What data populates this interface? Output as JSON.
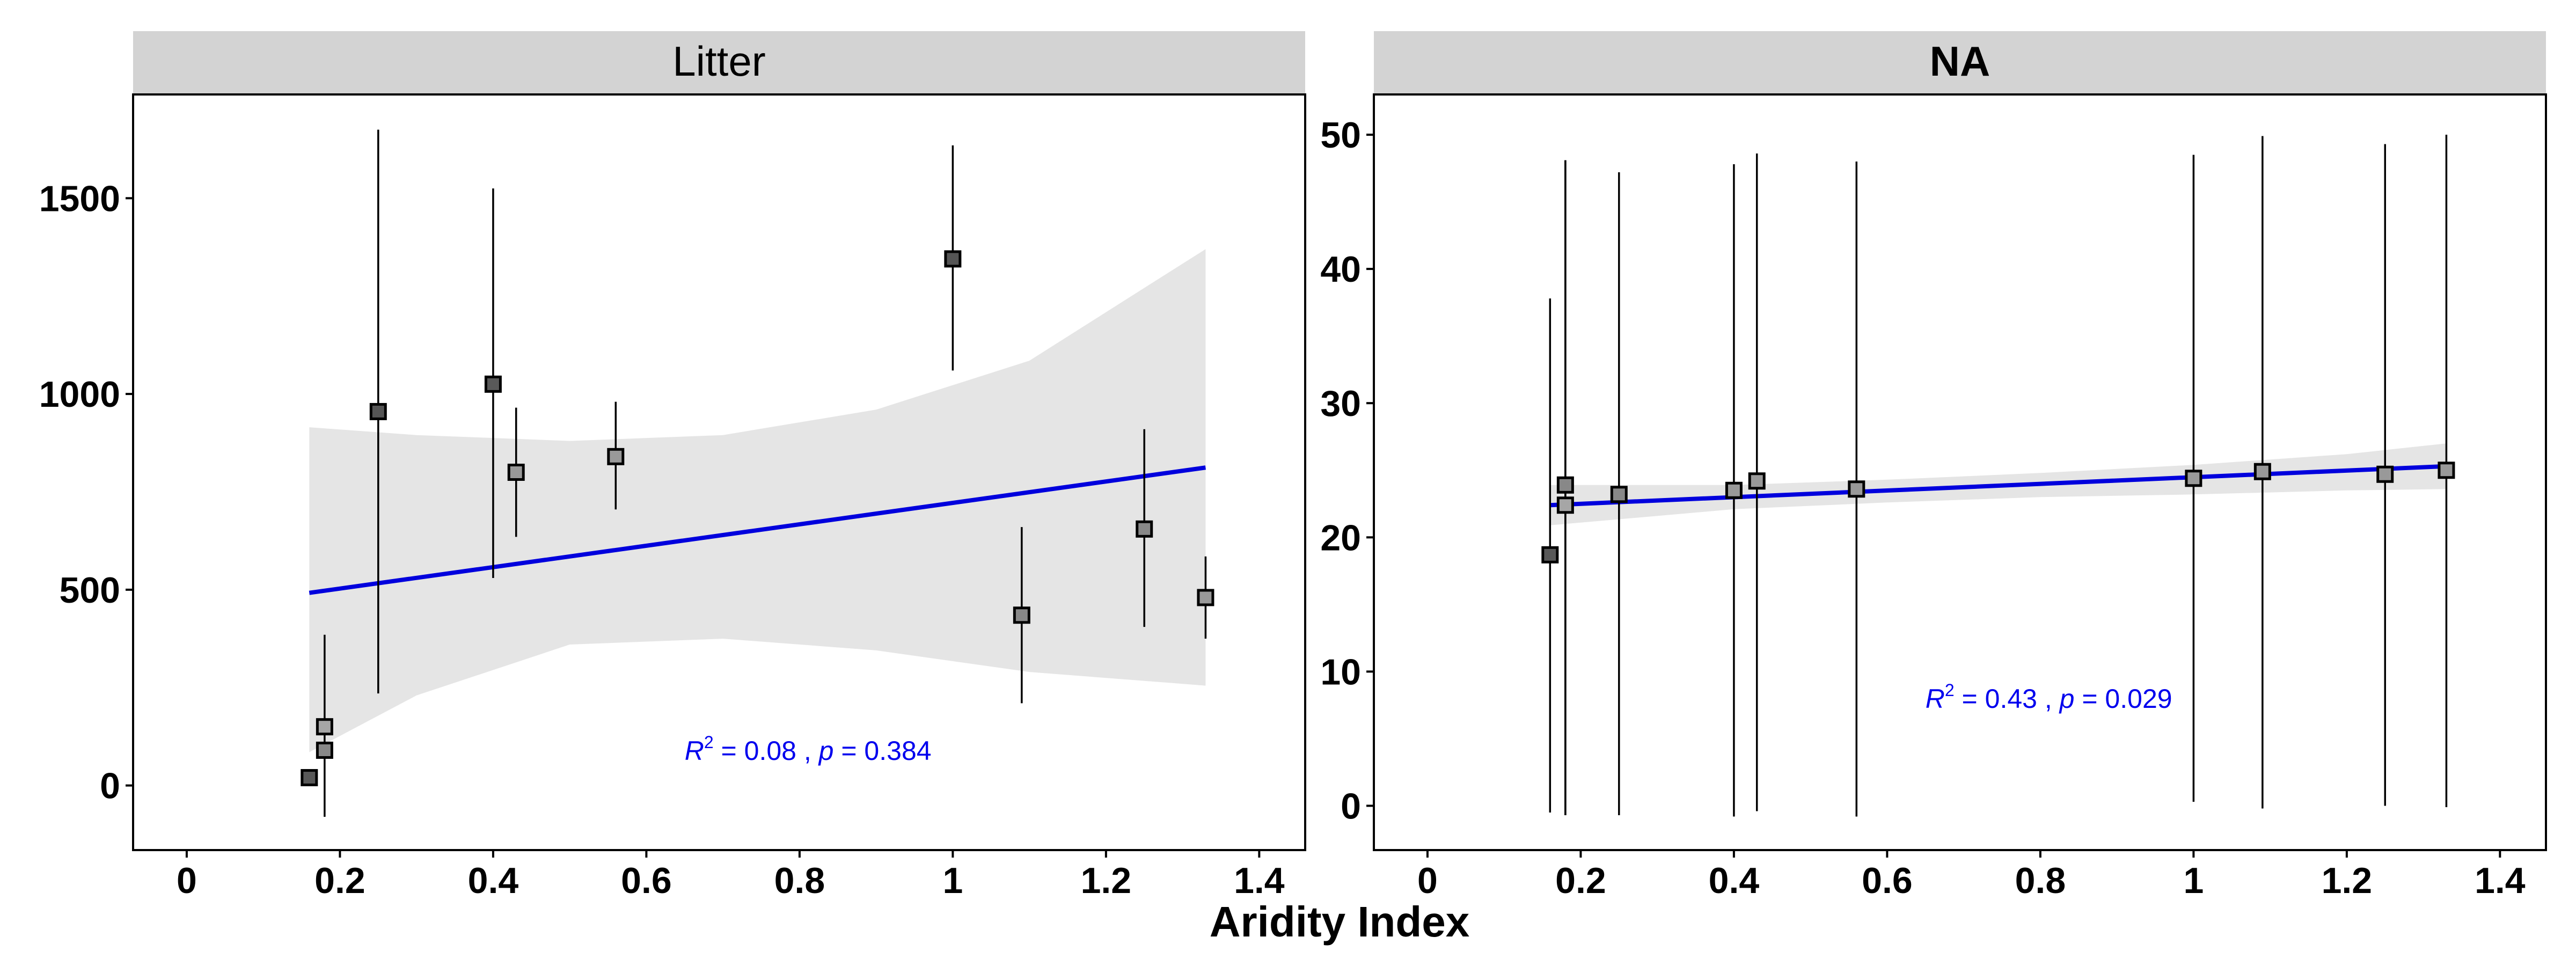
{
  "chart_data": [
    {
      "type": "scatter",
      "title": "Litter",
      "xlabel": "Aridity Index",
      "ylabel": "",
      "xlim": [
        -0.07,
        1.46
      ],
      "ylim": [
        -165,
        1765
      ],
      "x_ticks": [
        0,
        0.2,
        0.4,
        0.6,
        0.8,
        1,
        1.2,
        1.4
      ],
      "y_ticks": [
        0,
        500,
        1000,
        1500
      ],
      "x_tick_labels": [
        "0",
        "0.2",
        "0.4",
        "0.6",
        "0.8",
        "1",
        "1.2",
        "1.4"
      ],
      "y_tick_labels": [
        "0",
        "500",
        "1000",
        "1500"
      ],
      "grid": false,
      "points": [
        {
          "x": 0.16,
          "y": 20,
          "ymin": 20,
          "ymax": 20,
          "fill": "#595959"
        },
        {
          "x": 0.18,
          "y": 150,
          "ymin": -80,
          "ymax": 385,
          "fill": "#a6a6a6"
        },
        {
          "x": 0.18,
          "y": 90,
          "ymin": 90,
          "ymax": 90,
          "fill": "#888888"
        },
        {
          "x": 0.25,
          "y": 955,
          "ymin": 235,
          "ymax": 1675,
          "fill": "#555555"
        },
        {
          "x": 0.4,
          "y": 1025,
          "ymin": 530,
          "ymax": 1525,
          "fill": "#595959"
        },
        {
          "x": 0.43,
          "y": 800,
          "ymin": 635,
          "ymax": 965,
          "fill": "#999999"
        },
        {
          "x": 0.56,
          "y": 840,
          "ymin": 705,
          "ymax": 980,
          "fill": "#999999"
        },
        {
          "x": 1.0,
          "y": 1345,
          "ymin": 1060,
          "ymax": 1635,
          "fill": "#555555"
        },
        {
          "x": 1.09,
          "y": 435,
          "ymin": 210,
          "ymax": 660,
          "fill": "#888888"
        },
        {
          "x": 1.25,
          "y": 655,
          "ymin": 405,
          "ymax": 910,
          "fill": "#888888"
        },
        {
          "x": 1.33,
          "y": 480,
          "ymin": 375,
          "ymax": 585,
          "fill": "#999999"
        }
      ],
      "fit": {
        "x0": 0.16,
        "y0": 492,
        "x1": 1.33,
        "y1": 812,
        "color": "#0000dd"
      },
      "ribbon": {
        "upper": [
          [
            0.16,
            915
          ],
          [
            0.3,
            895
          ],
          [
            0.5,
            880
          ],
          [
            0.7,
            895
          ],
          [
            0.9,
            960
          ],
          [
            1.1,
            1085
          ],
          [
            1.33,
            1370
          ]
        ],
        "lower": [
          [
            0.16,
            85
          ],
          [
            0.3,
            230
          ],
          [
            0.5,
            360
          ],
          [
            0.7,
            375
          ],
          [
            0.9,
            345
          ],
          [
            1.1,
            290
          ],
          [
            1.33,
            255
          ]
        ]
      },
      "annotation": {
        "r_label": "R",
        "r_exp": "2",
        "r_value": " = 0.08 , ",
        "p_label": "p",
        "p_value": " = 0.384",
        "x": 0.65,
        "y": 65
      }
    },
    {
      "type": "scatter",
      "title": "NA",
      "xlabel": "Aridity Index",
      "ylabel": "",
      "xlim": [
        -0.07,
        1.46
      ],
      "ylim": [
        -3.3,
        53
      ],
      "x_ticks": [
        0,
        0.2,
        0.4,
        0.6,
        0.8,
        1,
        1.2,
        1.4
      ],
      "y_ticks": [
        0,
        10,
        20,
        30,
        40,
        50
      ],
      "x_tick_labels": [
        "0",
        "0.2",
        "0.4",
        "0.6",
        "0.8",
        "1",
        "1.2",
        "1.4"
      ],
      "y_tick_labels": [
        "0",
        "10",
        "20",
        "30",
        "40",
        "50"
      ],
      "grid": false,
      "points": [
        {
          "x": 0.16,
          "y": 18.7,
          "ymin": -0.5,
          "ymax": 37.8,
          "fill": "#595959"
        },
        {
          "x": 0.18,
          "y": 22.4,
          "ymin": -0.7,
          "ymax": 48.1,
          "fill": "#a6a6a6"
        },
        {
          "x": 0.18,
          "y": 23.9,
          "ymin": -0.7,
          "ymax": 48.1,
          "fill": "#888888"
        },
        {
          "x": 0.25,
          "y": 23.2,
          "ymin": -0.7,
          "ymax": 47.2,
          "fill": "#888888"
        },
        {
          "x": 0.4,
          "y": 23.5,
          "ymin": -0.8,
          "ymax": 47.8,
          "fill": "#999999"
        },
        {
          "x": 0.43,
          "y": 24.2,
          "ymin": -0.4,
          "ymax": 48.6,
          "fill": "#999999"
        },
        {
          "x": 0.56,
          "y": 23.6,
          "ymin": -0.8,
          "ymax": 48.0,
          "fill": "#999999"
        },
        {
          "x": 1.0,
          "y": 24.4,
          "ymin": 0.3,
          "ymax": 48.5,
          "fill": "#999999"
        },
        {
          "x": 1.09,
          "y": 24.9,
          "ymin": -0.2,
          "ymax": 49.9,
          "fill": "#999999"
        },
        {
          "x": 1.25,
          "y": 24.7,
          "ymin": 0.0,
          "ymax": 49.3,
          "fill": "#999999"
        },
        {
          "x": 1.33,
          "y": 25.0,
          "ymin": -0.1,
          "ymax": 50.0,
          "fill": "#999999"
        }
      ],
      "fit": {
        "x0": 0.16,
        "y0": 22.4,
        "x1": 1.33,
        "y1": 25.3,
        "color": "#0000dd"
      },
      "ribbon": {
        "upper": [
          [
            0.16,
            23.9
          ],
          [
            0.4,
            23.9
          ],
          [
            0.6,
            24.3
          ],
          [
            0.8,
            24.8
          ],
          [
            1.0,
            25.4
          ],
          [
            1.2,
            26.2
          ],
          [
            1.33,
            27.0
          ]
        ],
        "lower": [
          [
            0.16,
            20.9
          ],
          [
            0.4,
            22.1
          ],
          [
            0.6,
            22.6
          ],
          [
            0.8,
            23.0
          ],
          [
            1.0,
            23.2
          ],
          [
            1.2,
            23.5
          ],
          [
            1.33,
            23.6
          ]
        ]
      },
      "annotation": {
        "r_label": "R",
        "r_exp": "2",
        "r_value": " = 0.43 , ",
        "p_label": "p",
        "p_value": " = 0.029",
        "x": 0.65,
        "y": 7.3
      }
    }
  ],
  "figure": {
    "xlabel": "Aridity Index",
    "strip_bg": "#d3d3d3",
    "ribbon_color": "#e5e5e5",
    "errorbar_color": "#000000"
  }
}
